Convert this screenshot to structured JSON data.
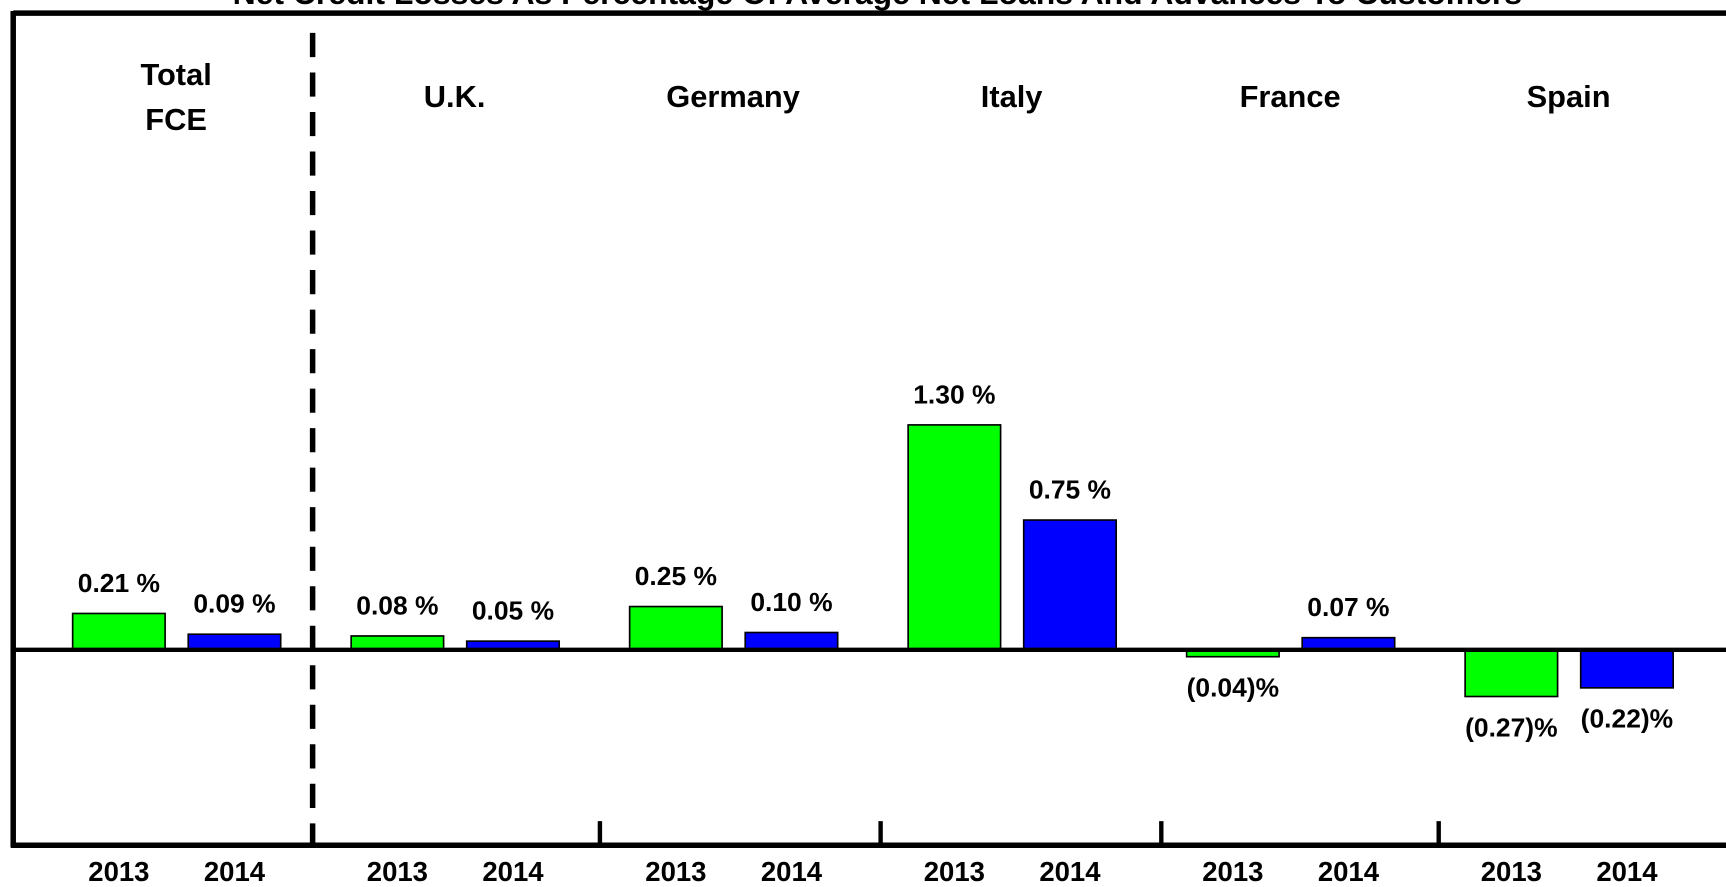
{
  "chart_data": {
    "type": "bar",
    "title": "Net Credit Losses As Percentage Of Average Net Loans And Advances To Customers",
    "categories": [
      "Total\nFCE",
      "U.K.",
      "Germany",
      "Italy",
      "France",
      "Spain"
    ],
    "series": [
      {
        "name": "2013",
        "color": "#00ff00",
        "values": [
          0.21,
          0.08,
          0.25,
          1.3,
          -0.04,
          -0.27
        ],
        "value_labels": [
          "0.21 %",
          "0.08 %",
          "0.25 %",
          "1.30 %",
          "(0.04)%",
          "(0.27)%"
        ]
      },
      {
        "name": "2014",
        "color": "#0000ff",
        "values": [
          0.09,
          0.05,
          0.1,
          0.75,
          0.07,
          -0.22
        ],
        "value_labels": [
          "0.09 %",
          "0.05 %",
          "0.10 %",
          "0.75 %",
          "0.07 %",
          "(0.22)%"
        ]
      }
    ],
    "ylim": [
      -1.13,
      3.68
    ]
  }
}
